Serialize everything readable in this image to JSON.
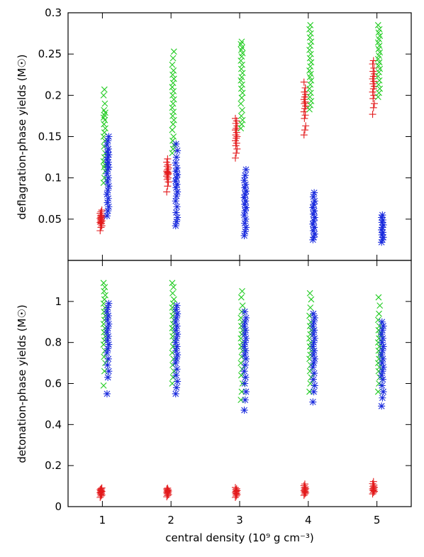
{
  "chart_data": [
    {
      "type": "scatter",
      "ylabel": "deflagration-phase yields (M☉)",
      "xlim": [
        0.5,
        5.5
      ],
      "ylim": [
        0,
        0.3
      ],
      "yticks": [
        "0.05",
        "0.1",
        "0.15",
        "0.2",
        "0.25",
        "0.3"
      ],
      "grid": false,
      "series": [
        {
          "color": "#e31a1c",
          "marker": "plus",
          "groups": [
            {
              "x": 0.98,
              "values": [
                0.036,
                0.04,
                0.042,
                0.044,
                0.045,
                0.046,
                0.047,
                0.048,
                0.049,
                0.05,
                0.051,
                0.052,
                0.053,
                0.054,
                0.055,
                0.057,
                0.059,
                0.061
              ]
            },
            {
              "x": 1.95,
              "values": [
                0.083,
                0.09,
                0.095,
                0.098,
                0.1,
                0.102,
                0.104,
                0.105,
                0.106,
                0.107,
                0.108,
                0.11,
                0.112,
                0.114,
                0.116,
                0.119,
                0.123
              ]
            },
            {
              "x": 2.95,
              "values": [
                0.124,
                0.13,
                0.135,
                0.139,
                0.142,
                0.145,
                0.148,
                0.15,
                0.152,
                0.155,
                0.158,
                0.16,
                0.163,
                0.166,
                0.169,
                0.172
              ]
            },
            {
              "x": 3.95,
              "values": [
                0.152,
                0.158,
                0.163,
                0.172,
                0.176,
                0.18,
                0.184,
                0.187,
                0.19,
                0.192,
                0.195,
                0.198,
                0.201,
                0.204,
                0.209,
                0.216
              ]
            },
            {
              "x": 4.95,
              "values": [
                0.177,
                0.185,
                0.19,
                0.196,
                0.2,
                0.204,
                0.208,
                0.211,
                0.214,
                0.217,
                0.22,
                0.223,
                0.226,
                0.229,
                0.233,
                0.238,
                0.242
              ]
            }
          ]
        },
        {
          "color": "#22cc22",
          "marker": "cross",
          "groups": [
            {
              "x": 1.03,
              "values": [
                0.094,
                0.1,
                0.108,
                0.113,
                0.116,
                0.12,
                0.125,
                0.13,
                0.138,
                0.145,
                0.15,
                0.155,
                0.16,
                0.165,
                0.17,
                0.173,
                0.176,
                0.179,
                0.182,
                0.19,
                0.2,
                0.207
              ]
            },
            {
              "x": 2.03,
              "values": [
                0.13,
                0.135,
                0.14,
                0.145,
                0.15,
                0.158,
                0.165,
                0.17,
                0.175,
                0.18,
                0.185,
                0.19,
                0.195,
                0.2,
                0.205,
                0.21,
                0.215,
                0.22,
                0.225,
                0.23,
                0.237,
                0.245,
                0.253
              ]
            },
            {
              "x": 3.03,
              "values": [
                0.16,
                0.165,
                0.17,
                0.175,
                0.182,
                0.19,
                0.197,
                0.203,
                0.208,
                0.213,
                0.218,
                0.222,
                0.227,
                0.232,
                0.237,
                0.242,
                0.247,
                0.251,
                0.255,
                0.258,
                0.262,
                0.265
              ]
            },
            {
              "x": 4.03,
              "values": [
                0.183,
                0.188,
                0.193,
                0.198,
                0.203,
                0.208,
                0.213,
                0.218,
                0.222,
                0.226,
                0.23,
                0.235,
                0.24,
                0.245,
                0.25,
                0.255,
                0.26,
                0.265,
                0.27,
                0.275,
                0.28,
                0.285
              ]
            },
            {
              "x": 5.03,
              "values": [
                0.198,
                0.203,
                0.208,
                0.213,
                0.218,
                0.223,
                0.228,
                0.232,
                0.236,
                0.24,
                0.244,
                0.248,
                0.252,
                0.256,
                0.26,
                0.264,
                0.268,
                0.272,
                0.276,
                0.28,
                0.285
              ]
            }
          ]
        },
        {
          "color": "#1a2bdd",
          "marker": "star",
          "groups": [
            {
              "x": 1.08,
              "values": [
                0.054,
                0.06,
                0.065,
                0.07,
                0.075,
                0.08,
                0.085,
                0.09,
                0.095,
                0.1,
                0.105,
                0.11,
                0.113,
                0.116,
                0.119,
                0.122,
                0.125,
                0.128,
                0.131,
                0.135,
                0.14,
                0.145,
                0.15
              ]
            },
            {
              "x": 2.08,
              "values": [
                0.042,
                0.047,
                0.052,
                0.058,
                0.065,
                0.072,
                0.078,
                0.083,
                0.088,
                0.092,
                0.096,
                0.1,
                0.104,
                0.108,
                0.112,
                0.118,
                0.125,
                0.133,
                0.141
              ]
            },
            {
              "x": 3.08,
              "values": [
                0.03,
                0.035,
                0.04,
                0.045,
                0.05,
                0.055,
                0.06,
                0.064,
                0.068,
                0.072,
                0.076,
                0.08,
                0.084,
                0.088,
                0.092,
                0.097,
                0.103,
                0.11
              ]
            },
            {
              "x": 4.08,
              "values": [
                0.025,
                0.028,
                0.032,
                0.036,
                0.04,
                0.044,
                0.048,
                0.052,
                0.056,
                0.06,
                0.064,
                0.068,
                0.072,
                0.077,
                0.082
              ]
            },
            {
              "x": 5.08,
              "values": [
                0.022,
                0.025,
                0.028,
                0.031,
                0.034,
                0.037,
                0.04,
                0.043,
                0.046,
                0.049,
                0.052,
                0.055
              ]
            }
          ]
        }
      ]
    },
    {
      "type": "scatter",
      "xlabel": "central density (10⁹ g cm⁻³)",
      "ylabel": "detonation-phase yields (M☉)",
      "xlim": [
        0.5,
        5.5
      ],
      "ylim": [
        0,
        1.2
      ],
      "xticks": [
        "1",
        "2",
        "3",
        "4",
        "5"
      ],
      "yticks": [
        "0",
        "0.2",
        "0.4",
        "0.6",
        "0.8",
        "1"
      ],
      "grid": false,
      "series": [
        {
          "color": "#e31a1c",
          "marker": "plus",
          "groups": [
            {
              "x": 0.98,
              "values": [
                0.045,
                0.052,
                0.057,
                0.061,
                0.065,
                0.068,
                0.071,
                0.074,
                0.077,
                0.08,
                0.083,
                0.087,
                0.091
              ]
            },
            {
              "x": 1.95,
              "values": [
                0.048,
                0.054,
                0.059,
                0.063,
                0.067,
                0.07,
                0.073,
                0.076,
                0.079,
                0.082,
                0.086,
                0.09
              ]
            },
            {
              "x": 2.95,
              "values": [
                0.045,
                0.052,
                0.058,
                0.062,
                0.066,
                0.07,
                0.074,
                0.078,
                0.082,
                0.087,
                0.093
              ]
            },
            {
              "x": 3.95,
              "values": [
                0.055,
                0.062,
                0.067,
                0.071,
                0.075,
                0.079,
                0.083,
                0.087,
                0.091,
                0.096,
                0.102,
                0.11
              ]
            },
            {
              "x": 4.95,
              "values": [
                0.062,
                0.069,
                0.074,
                0.078,
                0.082,
                0.086,
                0.09,
                0.094,
                0.099,
                0.105,
                0.112,
                0.122
              ]
            }
          ]
        },
        {
          "color": "#22cc22",
          "marker": "cross",
          "groups": [
            {
              "x": 1.03,
              "values": [
                0.59,
                0.66,
                0.7,
                0.73,
                0.76,
                0.79,
                0.81,
                0.83,
                0.85,
                0.87,
                0.89,
                0.91,
                0.93,
                0.95,
                0.97,
                0.99,
                1.01,
                1.03,
                1.05,
                1.07,
                1.09
              ]
            },
            {
              "x": 2.03,
              "values": [
                0.6,
                0.63,
                0.66,
                0.69,
                0.72,
                0.75,
                0.78,
                0.81,
                0.83,
                0.85,
                0.87,
                0.89,
                0.91,
                0.93,
                0.95,
                0.97,
                0.99,
                1.01,
                1.04,
                1.07,
                1.09
              ]
            },
            {
              "x": 3.03,
              "values": [
                0.52,
                0.56,
                0.6,
                0.64,
                0.67,
                0.7,
                0.73,
                0.76,
                0.78,
                0.8,
                0.82,
                0.84,
                0.86,
                0.88,
                0.9,
                0.92,
                0.95,
                0.98,
                1.02,
                1.05
              ]
            },
            {
              "x": 4.03,
              "values": [
                0.56,
                0.6,
                0.63,
                0.66,
                0.69,
                0.72,
                0.74,
                0.76,
                0.78,
                0.8,
                0.82,
                0.84,
                0.86,
                0.88,
                0.9,
                0.93,
                0.97,
                1.01,
                1.04
              ]
            },
            {
              "x": 5.03,
              "values": [
                0.56,
                0.6,
                0.63,
                0.66,
                0.68,
                0.7,
                0.72,
                0.74,
                0.76,
                0.78,
                0.8,
                0.82,
                0.84,
                0.86,
                0.88,
                0.91,
                0.94,
                0.98,
                1.02
              ]
            }
          ]
        },
        {
          "color": "#1a2bdd",
          "marker": "star",
          "groups": [
            {
              "x": 1.08,
              "values": [
                0.55,
                0.63,
                0.66,
                0.69,
                0.72,
                0.75,
                0.77,
                0.79,
                0.81,
                0.83,
                0.85,
                0.87,
                0.89,
                0.91,
                0.93,
                0.95,
                0.97,
                0.99
              ]
            },
            {
              "x": 2.08,
              "values": [
                0.55,
                0.58,
                0.61,
                0.64,
                0.67,
                0.7,
                0.72,
                0.74,
                0.76,
                0.78,
                0.8,
                0.82,
                0.84,
                0.86,
                0.88,
                0.9,
                0.92,
                0.94,
                0.96,
                0.98
              ]
            },
            {
              "x": 3.08,
              "values": [
                0.47,
                0.52,
                0.56,
                0.6,
                0.63,
                0.66,
                0.69,
                0.72,
                0.74,
                0.76,
                0.78,
                0.8,
                0.82,
                0.84,
                0.86,
                0.88,
                0.9,
                0.92,
                0.95
              ]
            },
            {
              "x": 4.08,
              "values": [
                0.51,
                0.56,
                0.59,
                0.62,
                0.65,
                0.68,
                0.7,
                0.72,
                0.74,
                0.76,
                0.78,
                0.8,
                0.82,
                0.84,
                0.86,
                0.88,
                0.9,
                0.92,
                0.94
              ]
            },
            {
              "x": 5.08,
              "values": [
                0.49,
                0.53,
                0.56,
                0.59,
                0.62,
                0.64,
                0.66,
                0.68,
                0.7,
                0.72,
                0.74,
                0.76,
                0.78,
                0.8,
                0.82,
                0.84,
                0.86,
                0.88,
                0.9
              ]
            }
          ]
        }
      ]
    }
  ]
}
